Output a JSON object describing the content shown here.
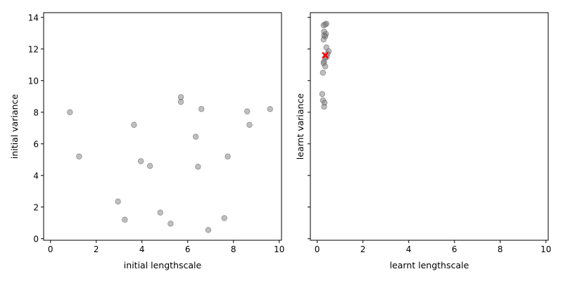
{
  "chart_data": [
    {
      "type": "scatter",
      "xlabel": "initial lengthscale",
      "ylabel": "initial variance",
      "xlim": [
        -0.3,
        10.1
      ],
      "ylim": [
        -0.1,
        14.3
      ],
      "xticks": [
        0,
        2,
        4,
        6,
        8,
        10
      ],
      "yticks": [
        0,
        2,
        4,
        6,
        8,
        10,
        12,
        14
      ],
      "grid": false,
      "point_color": "#808080",
      "points": [
        {
          "x": 0.85,
          "y": 8.0
        },
        {
          "x": 1.25,
          "y": 5.2
        },
        {
          "x": 2.95,
          "y": 2.35
        },
        {
          "x": 3.25,
          "y": 1.2
        },
        {
          "x": 3.65,
          "y": 7.2
        },
        {
          "x": 3.95,
          "y": 4.9
        },
        {
          "x": 4.35,
          "y": 4.6
        },
        {
          "x": 4.8,
          "y": 1.65
        },
        {
          "x": 5.25,
          "y": 0.95
        },
        {
          "x": 5.7,
          "y": 8.95
        },
        {
          "x": 5.7,
          "y": 8.65
        },
        {
          "x": 6.35,
          "y": 6.45
        },
        {
          "x": 6.45,
          "y": 4.55
        },
        {
          "x": 6.6,
          "y": 8.2
        },
        {
          "x": 6.9,
          "y": 0.55
        },
        {
          "x": 7.6,
          "y": 1.3
        },
        {
          "x": 7.75,
          "y": 5.2
        },
        {
          "x": 8.6,
          "y": 8.05
        },
        {
          "x": 8.7,
          "y": 7.2
        },
        {
          "x": 9.6,
          "y": 8.2
        }
      ]
    },
    {
      "type": "scatter",
      "xlabel": "learnt lengthscale",
      "ylabel": "learnt variance",
      "xlim": [
        -0.3,
        10.1
      ],
      "ylim": [
        -0.1,
        14.3
      ],
      "xticks": [
        0,
        2,
        4,
        6,
        8,
        10
      ],
      "yticks": [
        0,
        2,
        4,
        6,
        8,
        10,
        12,
        14
      ],
      "ytick_labels_shown": false,
      "grid": false,
      "point_color": "#808080",
      "marker_color": "#ff0000",
      "points": [
        {
          "x": 0.4,
          "y": 13.6
        },
        {
          "x": 0.35,
          "y": 13.55
        },
        {
          "x": 0.28,
          "y": 13.5
        },
        {
          "x": 0.3,
          "y": 13.1
        },
        {
          "x": 0.38,
          "y": 12.95
        },
        {
          "x": 0.35,
          "y": 12.8
        },
        {
          "x": 0.3,
          "y": 12.85
        },
        {
          "x": 0.28,
          "y": 12.6
        },
        {
          "x": 0.4,
          "y": 12.1
        },
        {
          "x": 0.5,
          "y": 11.85
        },
        {
          "x": 0.45,
          "y": 11.7
        },
        {
          "x": 0.42,
          "y": 11.5
        },
        {
          "x": 0.35,
          "y": 11.45
        },
        {
          "x": 0.3,
          "y": 11.2
        },
        {
          "x": 0.28,
          "y": 11.1
        },
        {
          "x": 0.35,
          "y": 10.9
        },
        {
          "x": 0.25,
          "y": 10.5
        },
        {
          "x": 0.22,
          "y": 9.15
        },
        {
          "x": 0.25,
          "y": 8.75
        },
        {
          "x": 0.32,
          "y": 8.6
        },
        {
          "x": 0.3,
          "y": 8.35
        }
      ],
      "markers": [
        {
          "x": 0.35,
          "y": 11.6
        }
      ]
    }
  ]
}
